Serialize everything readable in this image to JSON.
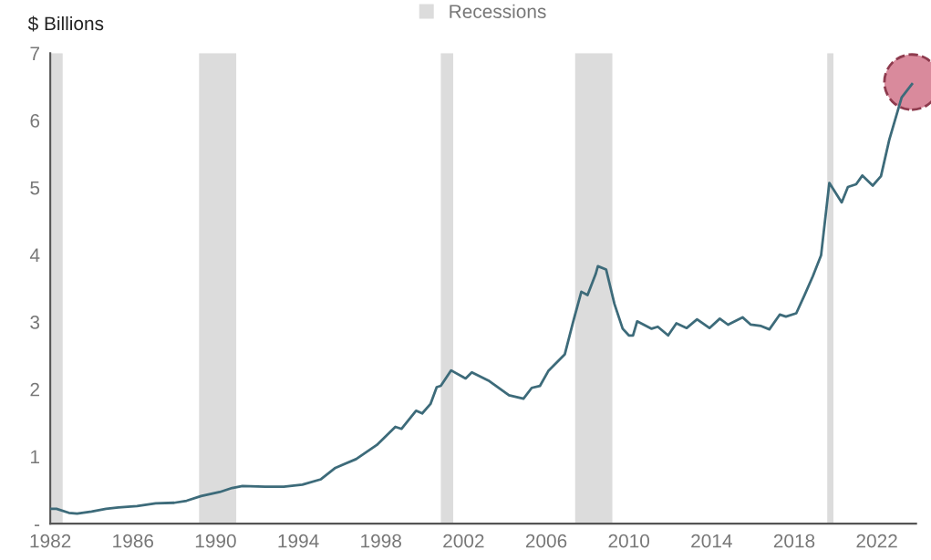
{
  "chart_data": {
    "type": "line",
    "ylabel": "$ Billions",
    "xlim": [
      1982,
      2023.9
    ],
    "xticks": [
      1982,
      1986,
      1990,
      1994,
      1998,
      2002,
      2006,
      2010,
      2014,
      2018,
      2022
    ],
    "ylim": [
      0,
      7
    ],
    "yticks": [
      {
        "value": 0,
        "label": "-"
      },
      1,
      2,
      3,
      4,
      5,
      6,
      7
    ],
    "grid": false,
    "legend": "top",
    "marker": "none",
    "line_style": "solid",
    "bands": [
      {
        "axis": "x",
        "from": 1982.0,
        "to": 1982.6,
        "label": "Recessions",
        "color": "#dcdcdc"
      },
      {
        "axis": "x",
        "from": 1989.2,
        "to": 1991.0,
        "color": "#dcdcdc"
      },
      {
        "axis": "x",
        "from": 2000.9,
        "to": 2001.5,
        "color": "#dcdcdc"
      },
      {
        "axis": "x",
        "from": 2007.4,
        "to": 2009.2,
        "color": "#dcdcdc"
      },
      {
        "axis": "x",
        "from": 2019.6,
        "to": 2019.9,
        "color": "#dcdcdc"
      }
    ],
    "series": [
      {
        "color": "#3d6b7a",
        "x": [
          1982.0,
          1982.3,
          1982.9,
          1983.3,
          1984.0,
          1984.7,
          1985.3,
          1986.2,
          1987.1,
          1988.0,
          1988.6,
          1989.3,
          1990.2,
          1990.8,
          1991.3,
          1992.4,
          1993.3,
          1994.2,
          1995.1,
          1995.8,
          1996.8,
          1997.8,
          1998.7,
          1999.0,
          1999.7,
          2000.0,
          2000.4,
          2000.7,
          2000.9,
          2001.4,
          2002.1,
          2002.4,
          2003.2,
          2004.2,
          2004.9,
          2005.3,
          2005.7,
          2006.1,
          2006.9,
          2007.3,
          2007.7,
          2008.0,
          2008.4,
          2008.5,
          2008.9,
          2009.3,
          2009.7,
          2010.0,
          2010.2,
          2010.4,
          2011.1,
          2011.4,
          2011.9,
          2012.3,
          2012.8,
          2013.3,
          2013.9,
          2014.4,
          2014.8,
          2015.5,
          2015.9,
          2016.4,
          2016.8,
          2017.3,
          2017.6,
          2018.1,
          2018.5,
          2018.9,
          2019.3,
          2019.5,
          2019.7,
          2020.3,
          2020.6,
          2021.0,
          2021.3,
          2021.8,
          2022.2,
          2022.6,
          2023.2,
          2023.7
        ],
        "values": [
          0.22,
          0.22,
          0.16,
          0.15,
          0.18,
          0.22,
          0.24,
          0.26,
          0.3,
          0.31,
          0.34,
          0.41,
          0.47,
          0.53,
          0.56,
          0.55,
          0.55,
          0.58,
          0.66,
          0.83,
          0.96,
          1.17,
          1.44,
          1.41,
          1.68,
          1.64,
          1.78,
          2.03,
          2.05,
          2.28,
          2.16,
          2.25,
          2.13,
          1.91,
          1.86,
          2.02,
          2.05,
          2.27,
          2.52,
          3.0,
          3.45,
          3.4,
          3.72,
          3.83,
          3.78,
          3.27,
          2.9,
          2.8,
          2.8,
          3.01,
          2.9,
          2.93,
          2.8,
          2.98,
          2.91,
          3.04,
          2.91,
          3.05,
          2.96,
          3.07,
          2.96,
          2.94,
          2.89,
          3.11,
          3.08,
          3.13,
          3.4,
          3.68,
          3.99,
          4.53,
          5.07,
          4.78,
          5.01,
          5.05,
          5.18,
          5.03,
          5.17,
          5.71,
          6.34,
          6.54
        ]
      },
      {
        "type": "scatter",
        "color": "#d98a9c",
        "marker": "circle",
        "x": [
          2023.7
        ],
        "values": [
          6.57
        ]
      }
    ]
  }
}
